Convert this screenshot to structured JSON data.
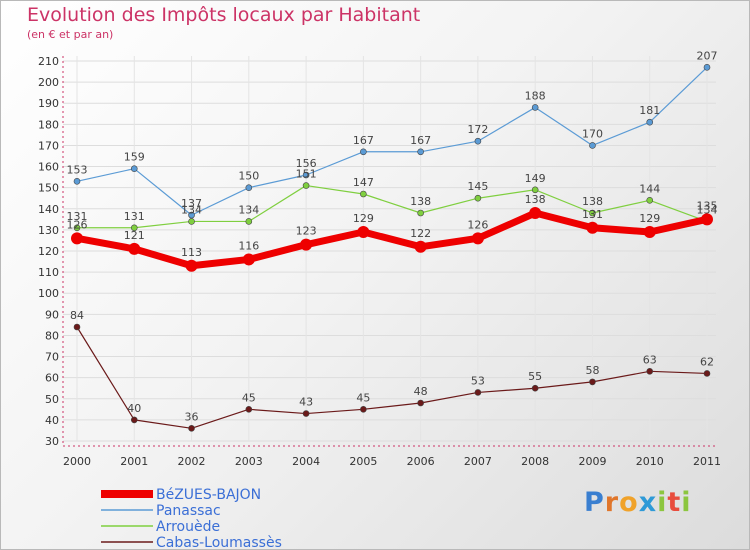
{
  "title": "Evolution des Impôts locaux par Habitant",
  "subtitle": "(en € et par an)",
  "brand": "Proxiti",
  "chart_data": {
    "type": "line",
    "x": [
      "2000",
      "2001",
      "2002",
      "2003",
      "2004",
      "2005",
      "2006",
      "2007",
      "2008",
      "2009",
      "2010",
      "2011"
    ],
    "ylim": [
      30,
      210
    ],
    "yticks": [
      30,
      40,
      50,
      60,
      70,
      80,
      90,
      100,
      110,
      120,
      130,
      140,
      150,
      160,
      170,
      180,
      190,
      200,
      210
    ],
    "grid": true,
    "legend_position": "bottom-left",
    "series": [
      {
        "name": "BéZUES-BAJON",
        "color": "#ee0000",
        "values": [
          126,
          121,
          113,
          116,
          123,
          129,
          122,
          126,
          138,
          131,
          129,
          135
        ]
      },
      {
        "name": "Panassac",
        "color": "#5b9bd5",
        "values": [
          153,
          159,
          137,
          150,
          156,
          167,
          167,
          172,
          188,
          170,
          181,
          207
        ]
      },
      {
        "name": "Arrouède",
        "color": "#7fcf3f",
        "values": [
          131,
          131,
          134,
          134,
          151,
          147,
          138,
          145,
          149,
          138,
          144,
          134
        ]
      },
      {
        "name": "Cabas-Loumassès",
        "color": "#6b1a1a",
        "values": [
          84,
          40,
          36,
          45,
          43,
          45,
          48,
          53,
          55,
          58,
          63,
          62
        ]
      }
    ]
  }
}
